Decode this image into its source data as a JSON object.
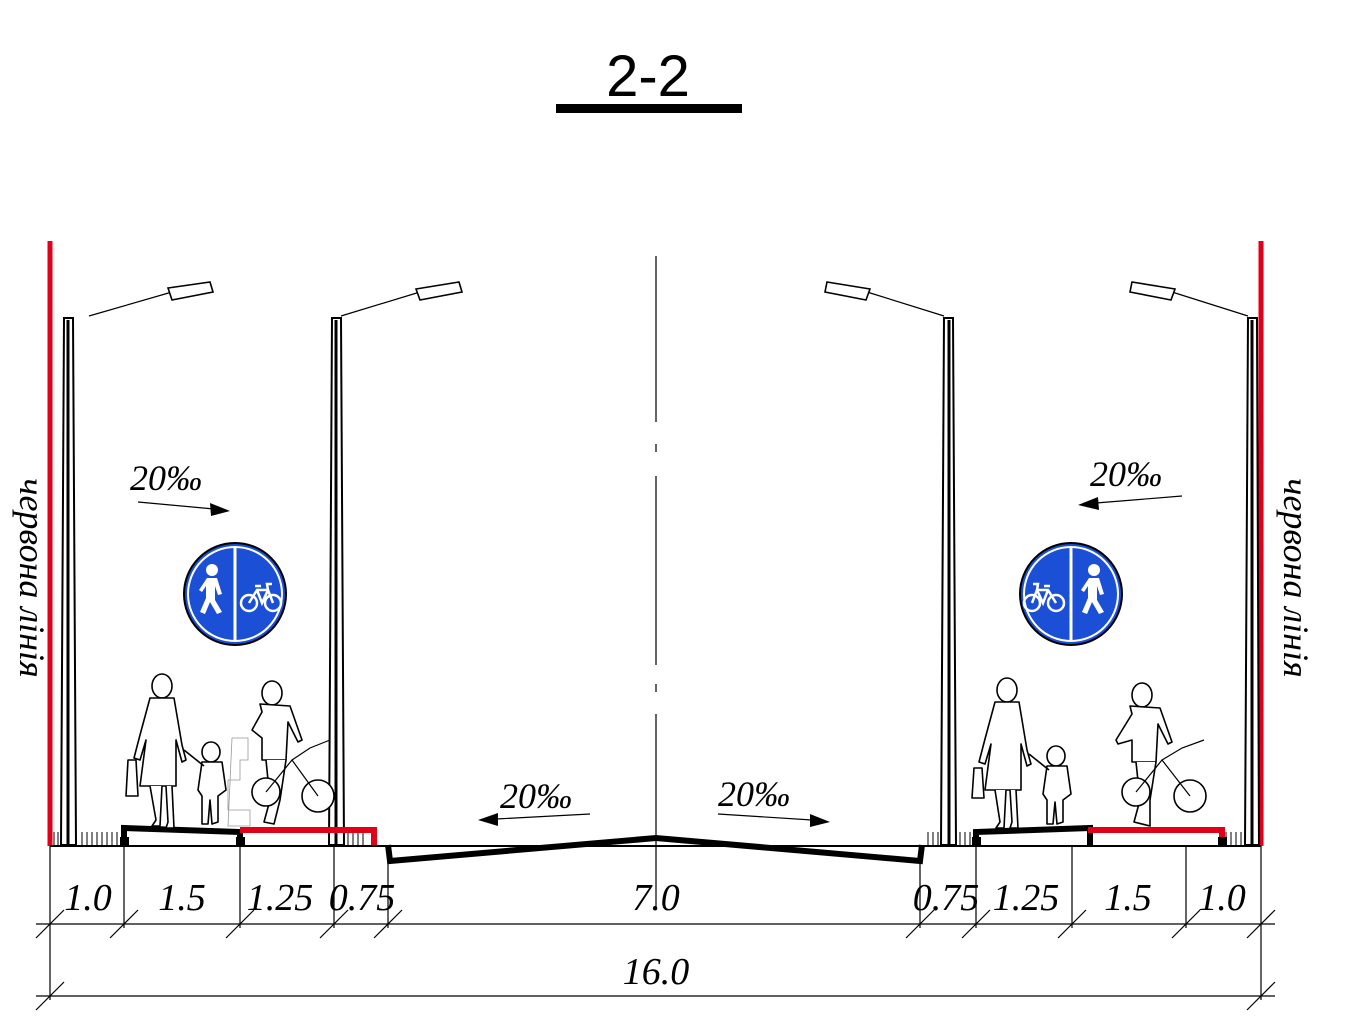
{
  "section_title": "2-2",
  "red_line_label_left": "червона лінія",
  "red_line_label_right": "червона лінія",
  "slopes": {
    "left_sidewalk": "20‰",
    "right_sidewalk": "20‰",
    "road_left": "20‰",
    "road_right": "20‰"
  },
  "dimensions": {
    "segments": [
      "1.0",
      "1.5",
      "1.25",
      "0.75",
      "7.0",
      "0.75",
      "1.25",
      "1.5",
      "1.0"
    ],
    "total": "16.0"
  },
  "signs": {
    "left": "shared-pedestrian-bicycle-sign",
    "right": "shared-bicycle-pedestrian-sign"
  },
  "colors": {
    "red_line": "#e0001a",
    "sign_blue": "#1a4fd6",
    "outline": "#000000"
  }
}
